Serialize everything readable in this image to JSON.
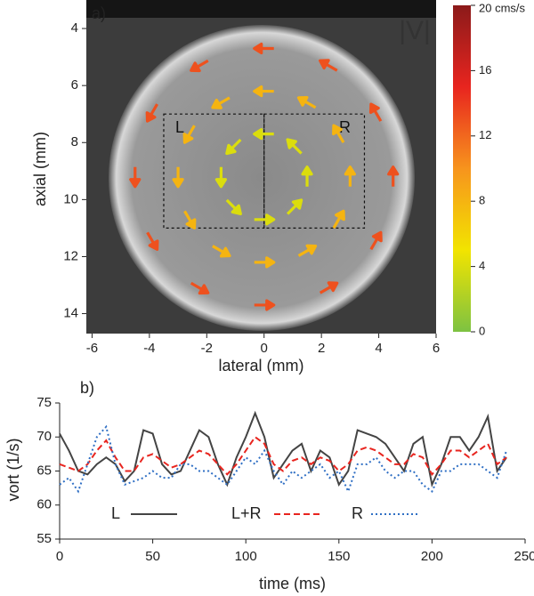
{
  "chart_data": [
    {
      "type": "quiver",
      "label": "a)",
      "annotation": "|V|",
      "xlabel": "lateral (mm)",
      "ylabel": "axial (mm)",
      "xlim": [
        -6.2,
        6
      ],
      "ylim": [
        3,
        14.7
      ],
      "y_inverted": true,
      "xticks": [
        -6,
        -4,
        -2,
        0,
        2,
        4,
        6
      ],
      "yticks": [
        4,
        6,
        8,
        10,
        12,
        14
      ],
      "regions": [
        {
          "label": "L",
          "x": [
            -3.5,
            0
          ],
          "y": [
            7,
            11
          ]
        },
        {
          "label": "R",
          "x": [
            0,
            3.5
          ],
          "y": [
            7,
            11
          ]
        }
      ],
      "vectors": {
        "x": [
          1.5,
          1.06,
          0,
          -1.06,
          -1.5,
          -1.06,
          0,
          1.06,
          3,
          2.6,
          1.5,
          0,
          -1.5,
          -2.6,
          -3,
          -2.6,
          -1.5,
          0,
          1.5,
          2.6,
          4.5,
          3.9,
          2.25,
          0,
          -2.25,
          -3.9,
          -4.5,
          -3.9,
          -2.25,
          0,
          2.25,
          3.9
        ],
        "y": [
          9.2,
          10.26,
          10.7,
          10.26,
          9.2,
          8.14,
          7.7,
          8.14,
          9.2,
          10.7,
          11.8,
          12.2,
          11.8,
          10.7,
          9.2,
          7.7,
          6.6,
          6.2,
          6.6,
          7.7,
          9.2,
          11.45,
          13.1,
          13.7,
          13.1,
          11.45,
          9.2,
          6.95,
          5.3,
          4.7,
          5.3,
          6.95
        ],
        "vx": [
          0,
          2.83,
          4,
          2.83,
          0,
          -2.83,
          -4,
          -2.83,
          0,
          4,
          6.93,
          8,
          6.93,
          4,
          0,
          -4,
          -6.93,
          -8,
          -6.93,
          -4,
          0,
          6.5,
          11.26,
          13,
          11.26,
          6.5,
          0,
          -6.5,
          -11.26,
          -13,
          -11.26,
          -6.5
        ],
        "vy": [
          -4,
          -2.83,
          0,
          2.83,
          4,
          2.83,
          0,
          -2.83,
          -8,
          -6.93,
          -4,
          0,
          4,
          6.93,
          8,
          6.93,
          4,
          0,
          -4,
          -6.93,
          -13,
          -11.26,
          -6.5,
          0,
          6.5,
          11.26,
          13,
          11.26,
          6.5,
          0,
          -6.5,
          -11.26
        ]
      },
      "colorbar": {
        "lim": [
          0,
          20
        ],
        "ticks": [
          0,
          4,
          8,
          12,
          16,
          {
            "value": 20,
            "label": "20 cms/s"
          }
        ],
        "colors": [
          "#7dc242",
          "#f2e400",
          "#f7941d",
          "#e8251f",
          "#8b1a1a"
        ]
      }
    },
    {
      "type": "line",
      "label": "b)",
      "xlabel": "time (ms)",
      "ylabel": "vort (1/s)",
      "xlim": [
        0,
        250
      ],
      "ylim": [
        55,
        75
      ],
      "xticks": [
        0,
        50,
        100,
        150,
        200,
        250
      ],
      "yticks": [
        55,
        60,
        65,
        70,
        75
      ],
      "legend": "bottom",
      "x": [
        0,
        5,
        10,
        15,
        20,
        25,
        30,
        35,
        40,
        45,
        50,
        55,
        60,
        65,
        70,
        75,
        80,
        85,
        90,
        95,
        100,
        105,
        110,
        115,
        120,
        125,
        130,
        135,
        140,
        145,
        150,
        155,
        160,
        165,
        170,
        175,
        180,
        185,
        190,
        195,
        200,
        205,
        210,
        215,
        220,
        225,
        230,
        235,
        240
      ],
      "series": [
        {
          "name": "L",
          "color": "#444444",
          "dash": "solid",
          "values": [
            70.5,
            68,
            65,
            64.5,
            66,
            67,
            66,
            63.5,
            65,
            71,
            70.5,
            66,
            64.5,
            65,
            68,
            71,
            70,
            66,
            63,
            67,
            70,
            73.5,
            70,
            64,
            66,
            68,
            69,
            65,
            68,
            67,
            63,
            65,
            71,
            70.5,
            70,
            69,
            67,
            65,
            69,
            70,
            63,
            66,
            70,
            70,
            68,
            70,
            73,
            65,
            67
          ]
        },
        {
          "name": "L+R",
          "color": "#e8251f",
          "dash": "dashed",
          "values": [
            66,
            65.5,
            65,
            66,
            68,
            69.5,
            67,
            65,
            65,
            67,
            67.5,
            66.5,
            65.5,
            66,
            67,
            68,
            67.5,
            66,
            64.5,
            66,
            68,
            70,
            69,
            66,
            65,
            66.5,
            67,
            66,
            67,
            66.5,
            65,
            66,
            68,
            68.5,
            68,
            67,
            66,
            66,
            67.5,
            67,
            64.5,
            66,
            68,
            68,
            67,
            68,
            69,
            66,
            67
          ]
        },
        {
          "name": "R",
          "color": "#2f6fc4",
          "dash": "dotted",
          "values": [
            63,
            64,
            62,
            66,
            70,
            71.5,
            66,
            63,
            63.5,
            64,
            65,
            64,
            64,
            66,
            66,
            65,
            65,
            64,
            63,
            65,
            67,
            66,
            68,
            65,
            63,
            65,
            64,
            65,
            66,
            64,
            65,
            62,
            66,
            66,
            67,
            65,
            64,
            65,
            65,
            63,
            62,
            65,
            65,
            66,
            66,
            66,
            65,
            64,
            68
          ]
        }
      ]
    }
  ]
}
